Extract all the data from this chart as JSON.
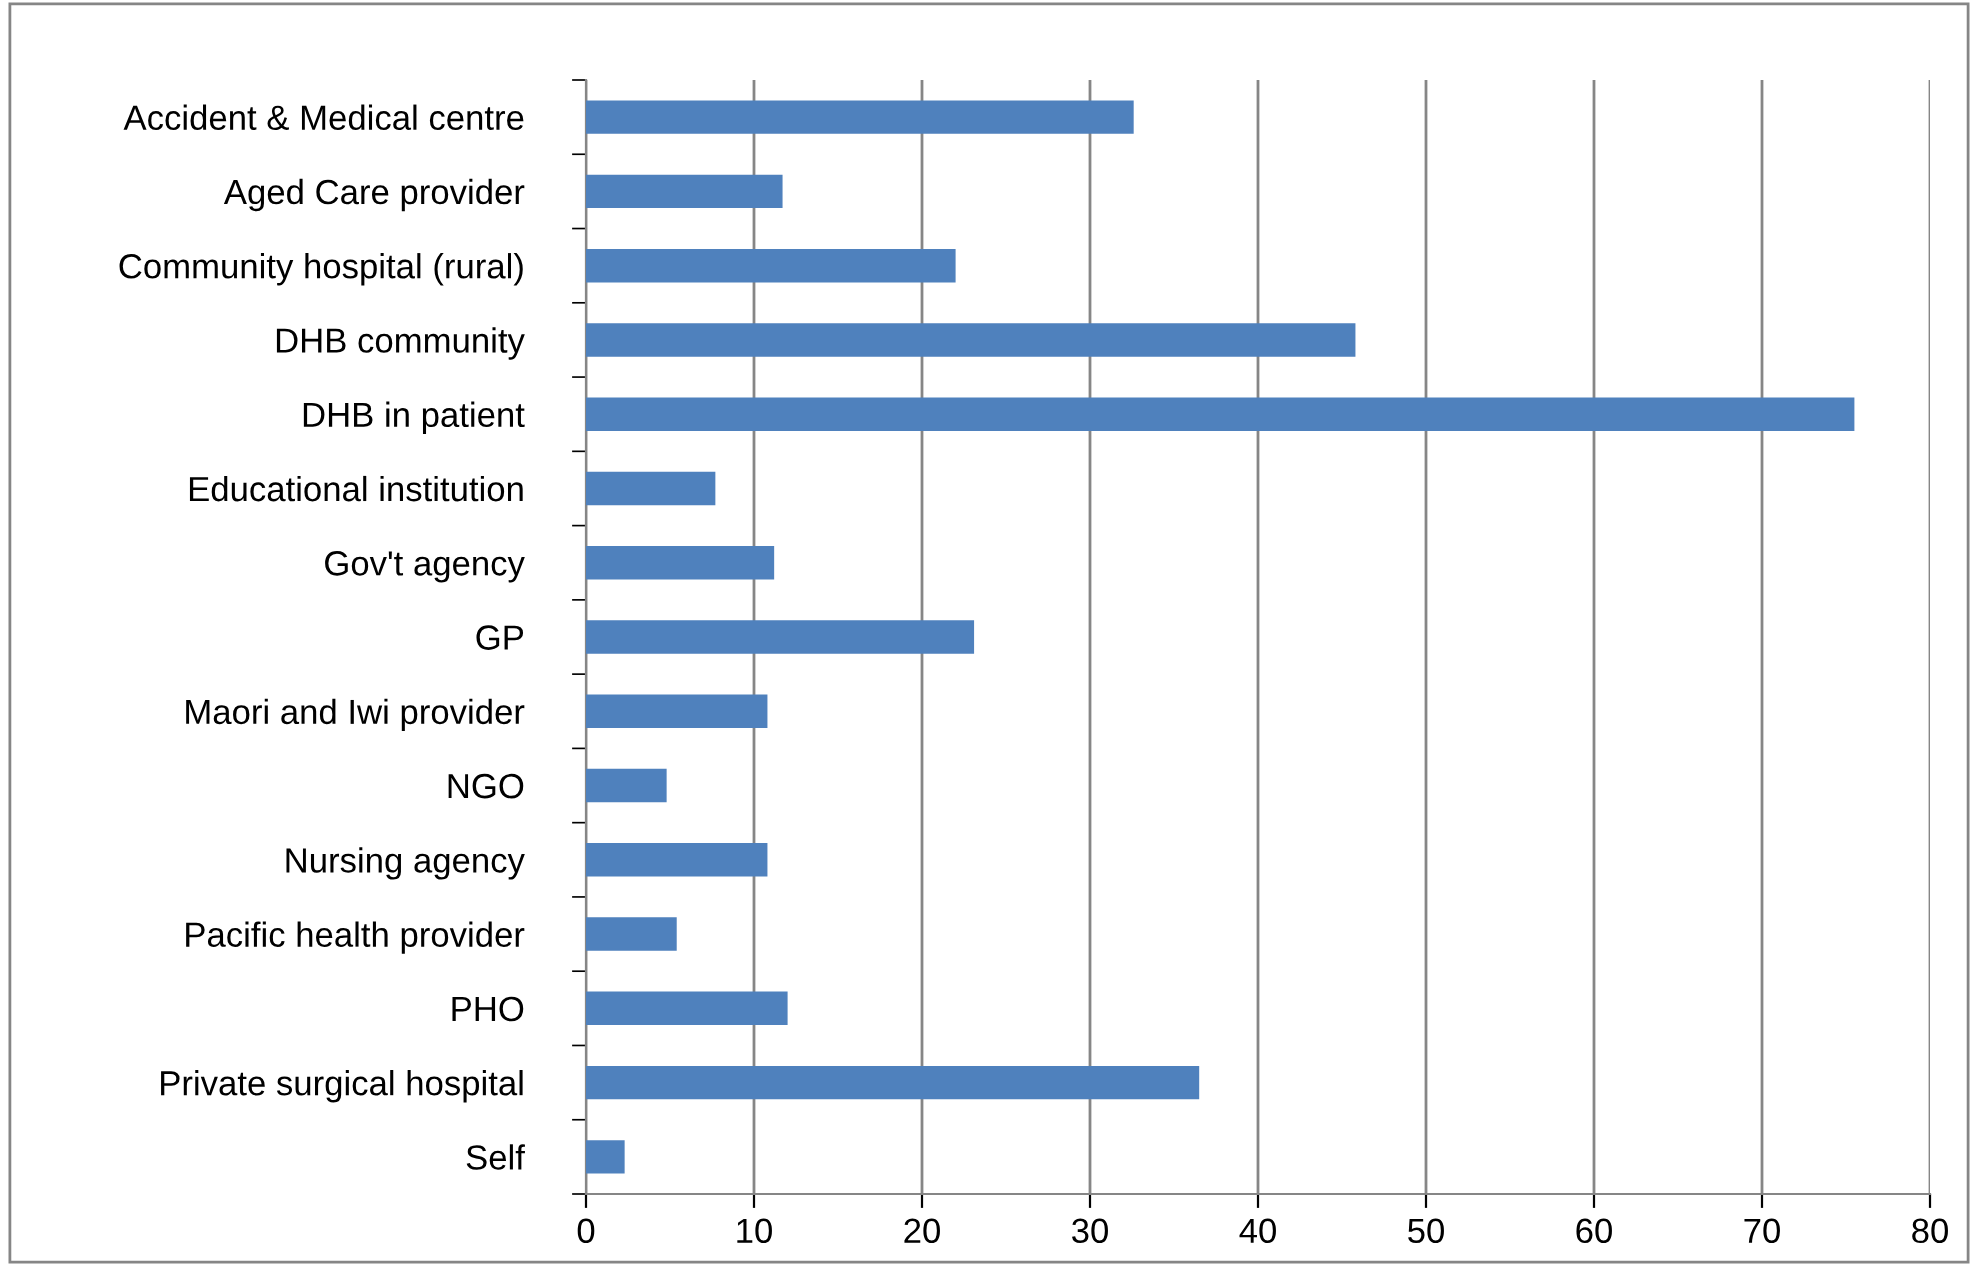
{
  "chart_data": {
    "type": "bar",
    "orientation": "horizontal",
    "categories": [
      "Accident & Medical centre",
      "Aged Care provider",
      "Community hospital (rural)",
      "DHB community",
      "DHB in patient",
      "Educational institution",
      "Gov't agency",
      "GP",
      "Maori and Iwi provider",
      "NGO",
      "Nursing agency",
      "Pacific health provider",
      "PHO",
      "Private surgical hospital",
      "Self"
    ],
    "values": [
      32.6,
      11.7,
      22.0,
      45.8,
      75.5,
      7.7,
      11.2,
      23.1,
      10.8,
      4.8,
      10.8,
      5.4,
      12.0,
      36.5,
      2.3
    ],
    "color": "#4f81bd",
    "xlim": [
      0,
      80
    ],
    "xticks": [
      0,
      10,
      20,
      30,
      40,
      50,
      60,
      70,
      80
    ],
    "grid": "x",
    "legend": false
  }
}
